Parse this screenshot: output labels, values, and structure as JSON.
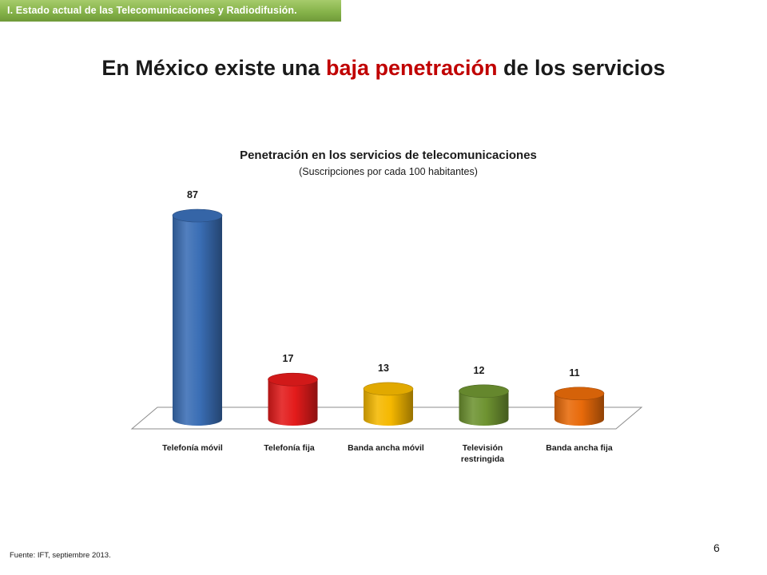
{
  "header": {
    "section_label": "I. Estado actual de las Telecomunicaciones y Radiodifusión.",
    "title_before": "En México existe una ",
    "title_highlight": "baja penetración",
    "title_after": " de los servicios",
    "title_highlight_color": "#c00000",
    "section_bar_color": "#86b34a"
  },
  "chart_data": {
    "type": "bar",
    "title": "Penetración en los servicios de telecomunicaciones",
    "subtitle": "(Suscripciones por cada 100 habitantes)",
    "categories": [
      "Telefonía móvil",
      "Telefonía fija",
      "Banda ancha móvil",
      "Televisión restringida",
      "Banda ancha fija"
    ],
    "values": [
      87,
      17,
      13,
      12,
      11
    ],
    "data_labels": [
      "87",
      "17",
      "13",
      "12",
      "11"
    ],
    "colors": [
      "#3a6eb5",
      "#e31b1b",
      "#f5b800",
      "#6e9331",
      "#e86a0a"
    ],
    "xlabel": "",
    "ylabel": "",
    "ylim": [
      0,
      87
    ],
    "grid": false,
    "legend": "none",
    "bar_shape": "cylinder-3d"
  },
  "footer": {
    "source": "Fuente: IFT,  septiembre 2013.",
    "page_number": "6"
  }
}
